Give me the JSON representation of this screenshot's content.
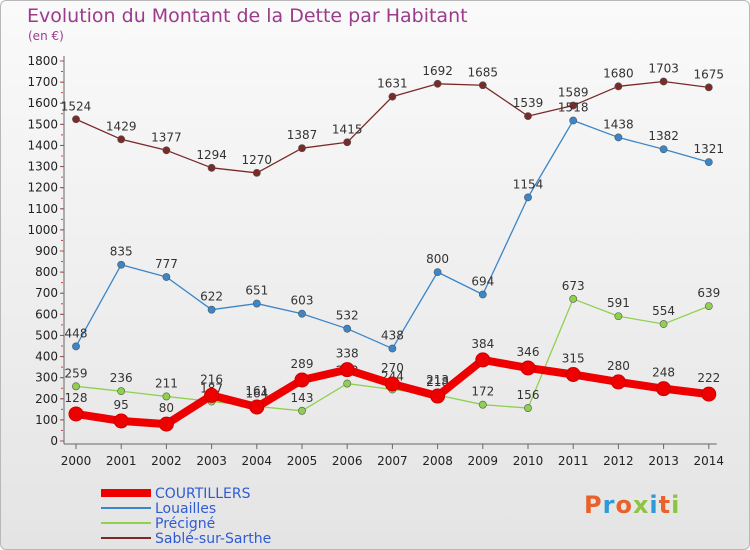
{
  "header": {
    "title": "Evolution du Montant de la Dette par Habitant",
    "unit": "(en €)"
  },
  "logo": {
    "text": "Proxiti",
    "colors": [
      "#e8622c",
      "#2f9ad8",
      "#e8622c",
      "#8cc63f",
      "#2f9ad8",
      "#e8622c",
      "#8cc63f"
    ]
  },
  "chart_data": {
    "type": "line",
    "categories": [
      "2000",
      "2001",
      "2002",
      "2003",
      "2004",
      "2005",
      "2006",
      "2007",
      "2008",
      "2009",
      "2010",
      "2011",
      "2012",
      "2013",
      "2014"
    ],
    "ylim": [
      0,
      1800
    ],
    "yticks": [
      0,
      100,
      200,
      300,
      400,
      500,
      600,
      700,
      800,
      900,
      1000,
      1100,
      1200,
      1300,
      1400,
      1500,
      1600,
      1700,
      1800
    ],
    "grid": false,
    "legend": "bottom-left",
    "series": [
      {
        "name": "Sablé-sur-Sarthe",
        "color": "#7b2a2a",
        "values": [
          1524,
          1429,
          1377,
          1294,
          1270,
          1387,
          1415,
          1631,
          1692,
          1685,
          1539,
          1589,
          1680,
          1703,
          1675
        ]
      },
      {
        "name": "Louailles",
        "color": "#3b86c8",
        "values": [
          448,
          835,
          777,
          622,
          651,
          603,
          532,
          438,
          800,
          694,
          1154,
          1518,
          1438,
          1382,
          1321
        ]
      },
      {
        "name": "Précigné",
        "color": "#8fd14f",
        "values": [
          259,
          236,
          211,
          187,
          164,
          143,
          272,
          244,
          218,
          172,
          156,
          673,
          591,
          554,
          639
        ]
      },
      {
        "name": "COURTILLERS",
        "color": "#ee0000",
        "values": [
          128,
          95,
          80,
          216,
          161,
          289,
          338,
          270,
          213,
          384,
          346,
          315,
          280,
          248,
          222
        ]
      }
    ],
    "legend_order": [
      "COURTILLERS",
      "Louailles",
      "Précigné",
      "Sablé-sur-Sarthe"
    ]
  }
}
